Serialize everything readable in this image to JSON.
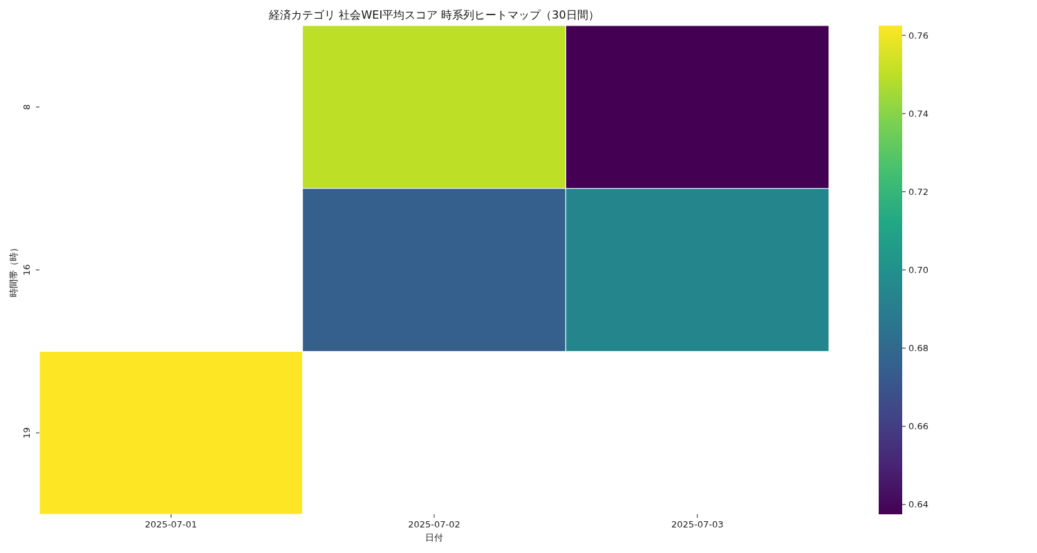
{
  "chart_data": {
    "type": "heatmap",
    "title": "経済カテゴリ 社会WEI平均スコア 時系列ヒートマップ（30日間）",
    "xlabel": "日付",
    "ylabel": "時間帯（時）",
    "categories": [
      "2025-07-01",
      "2025-07-02",
      "2025-07-03"
    ],
    "y_categories": [
      "8",
      "16",
      "19"
    ],
    "cells": [
      [
        null,
        0.75,
        0.6375
      ],
      [
        null,
        0.675,
        0.694
      ],
      [
        0.7625,
        null,
        null
      ]
    ],
    "clim": [
      0.6375,
      0.7625
    ],
    "cticks": [
      0.64,
      0.66,
      0.68,
      {
        "value": 0.7,
        "label": "0.70"
      },
      0.72,
      0.74,
      0.76
    ]
  }
}
